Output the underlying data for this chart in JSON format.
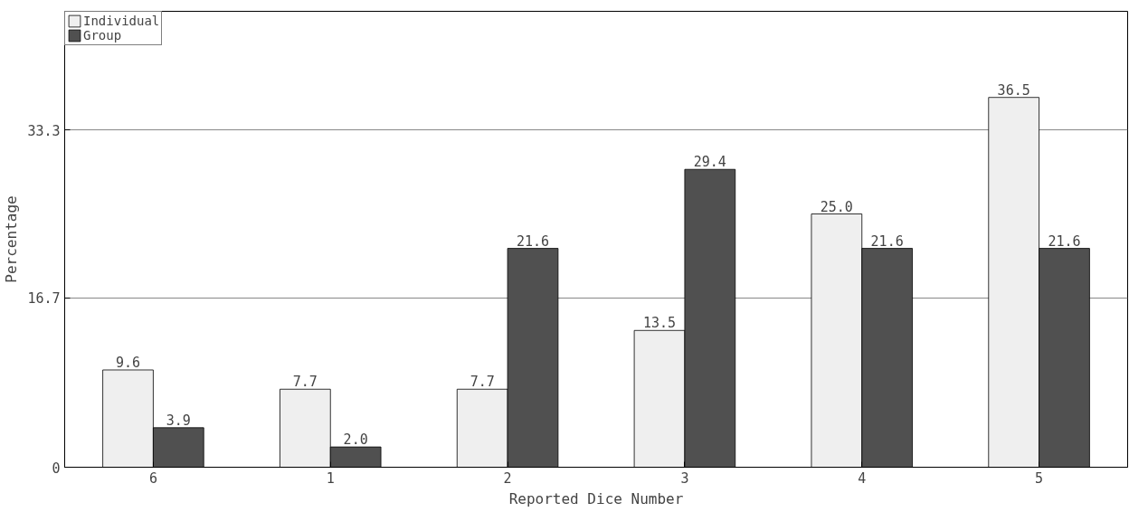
{
  "chart_data": {
    "type": "bar",
    "xlabel": "Reported Dice Number",
    "ylabel": "Percentage",
    "categories": [
      "6",
      "1",
      "2",
      "3",
      "4",
      "5"
    ],
    "series": [
      {
        "name": "Individual",
        "color": "#efefef",
        "values": [
          9.6,
          7.7,
          7.7,
          13.5,
          25.0,
          36.5
        ],
        "value_labels": [
          "9.6",
          "7.7",
          "7.7",
          "13.5",
          "25.0",
          "36.5"
        ]
      },
      {
        "name": "Group",
        "color": "#505050",
        "values": [
          3.9,
          2.0,
          21.6,
          29.4,
          21.6,
          21.6
        ],
        "value_labels": [
          "3.9",
          "2.0",
          "21.6",
          "29.4",
          "21.6",
          "21.6"
        ]
      }
    ],
    "ylim": [
      0,
      45
    ],
    "yticks": [
      0,
      16.7,
      33.3
    ],
    "grid": "y",
    "legend": "top left"
  }
}
